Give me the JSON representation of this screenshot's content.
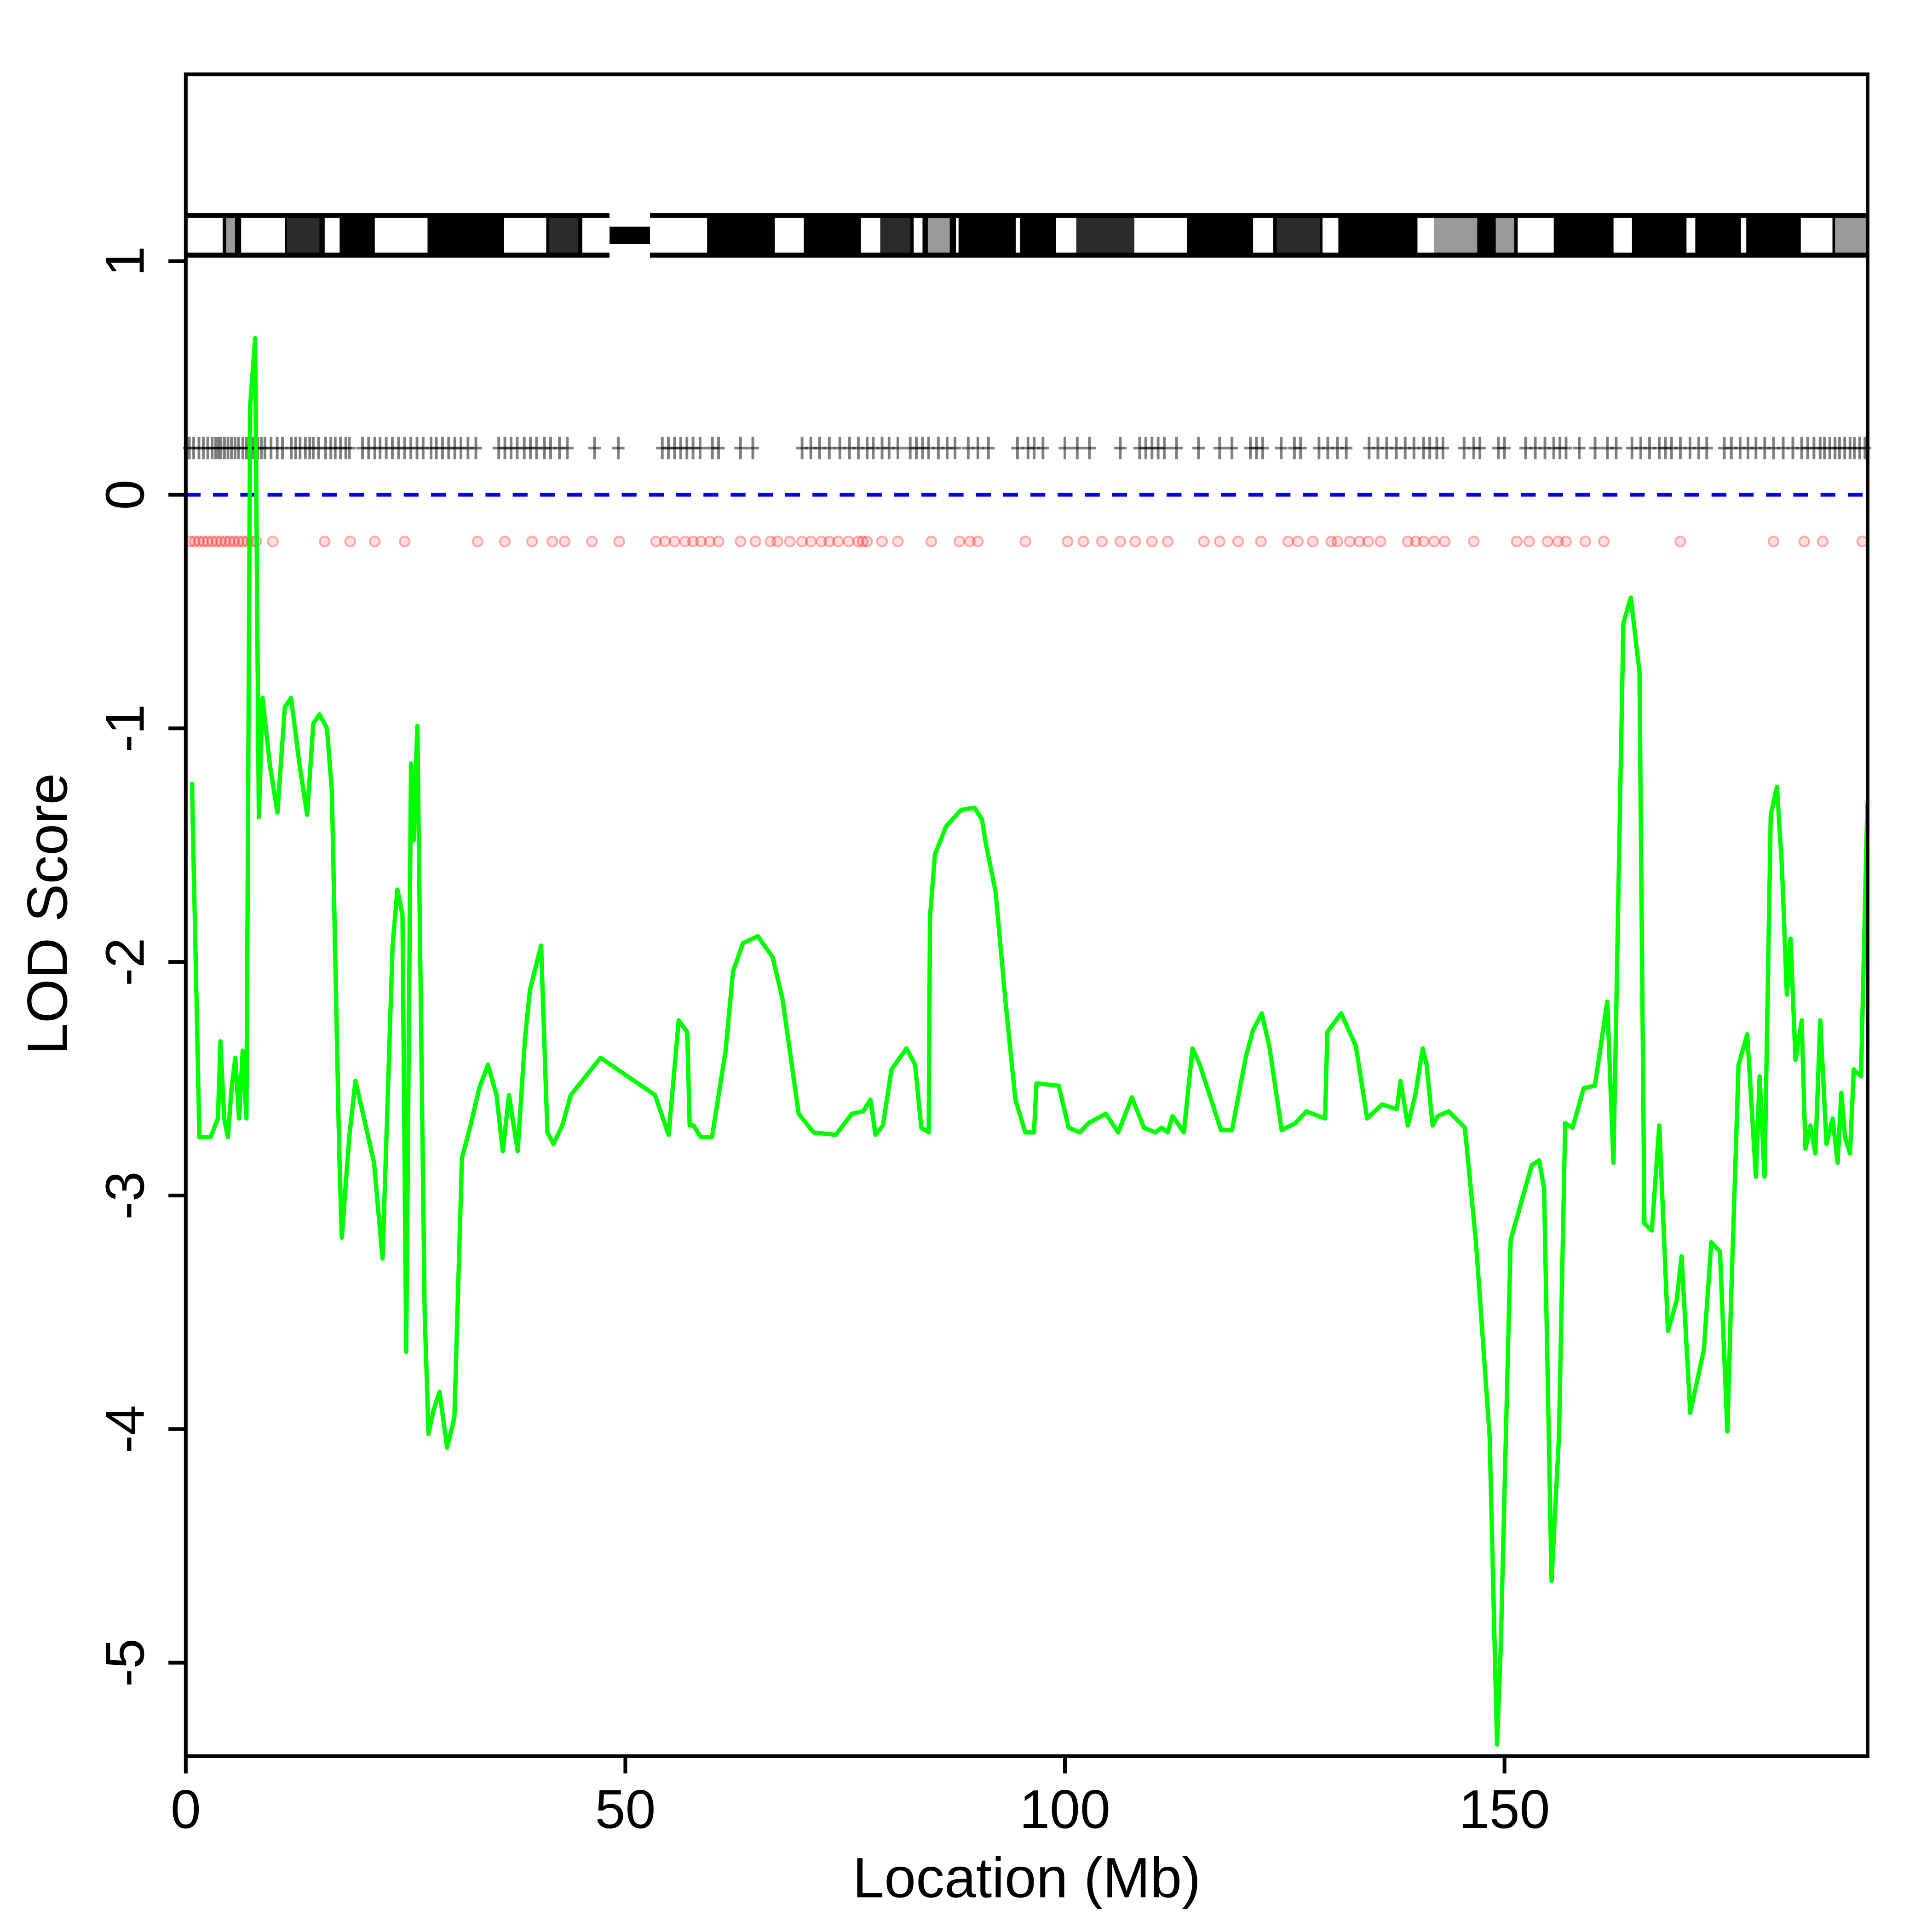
{
  "chart_data": {
    "type": "line",
    "title": "",
    "xlabel": "Location (Mb)",
    "ylabel": "LOD Score",
    "xlim": [
      0,
      191.3
    ],
    "ylim": [
      -5.4,
      1.8
    ],
    "xticks": [
      0,
      50,
      100,
      150
    ],
    "yticks": [
      -5,
      -4,
      -3,
      -2,
      -1,
      0,
      1
    ],
    "grid": false,
    "legend": "none",
    "colors": {
      "lod": "#00ff00",
      "threshold": "#0000ff",
      "markers_top": "#000000",
      "markers_bottom": "#ff0000"
    },
    "threshold": 0,
    "marker_rows": {
      "top_lod": 0.2,
      "bottom_lod": -0.2
    },
    "series": [
      {
        "name": "LOD",
        "x": [
          0.7,
          1.55,
          2.82,
          3.66,
          3.94,
          4.37,
          4.79,
          5.21,
          5.63,
          6.06,
          6.48,
          6.9,
          7.32,
          7.89,
          8.31,
          8.73,
          9.58,
          10.42,
          11.27,
          11.97,
          12.96,
          13.8,
          14.51,
          15.21,
          16.06,
          16.62,
          17.46,
          17.75,
          18.59,
          19.3,
          20.28,
          21.41,
          22.39,
          23.52,
          24.08,
          24.65,
          25.07,
          25.63,
          25.92,
          26.34,
          27.18,
          27.61,
          28.17,
          28.87,
          29.72,
          30.56,
          31.41,
          32.39,
          33.38,
          34.37,
          35.35,
          36.06,
          36.76,
          37.75,
          38.59,
          39.15,
          40.42,
          41.13,
          41.83,
          42.82,
          43.8,
          47.18,
          53.38,
          54.93,
          56.06,
          57.04,
          57.32,
          57.75,
          58.59,
          59.86,
          61.41,
          62.25,
          63.38,
          65.07,
          66.76,
          67.89,
          69.72,
          71.41,
          73.94,
          75.77,
          77.04,
          77.89,
          78.45,
          79.3,
          80.28,
          81.97,
          82.96,
          83.66,
          84.51,
          84.65,
          85.21,
          86.48,
          88.17,
          89.72,
          90.56,
          90.99,
          92.11,
          93.24,
          94.37,
          95.49,
          96.48,
          96.76,
          99.3,
          100.42,
          101.69,
          102.68,
          104.65,
          106.06,
          107.61,
          109.01,
          110.28,
          110.99,
          111.69,
          112.25,
          113.52,
          114.51,
          115.35,
          117.75,
          119.01,
          120.56,
          121.41,
          122.39,
          123.24,
          124.65,
          126.2,
          127.46,
          129.58,
          129.86,
          131.41,
          133.1,
          134.37,
          136.06,
          137.75,
          138.17,
          139.01,
          139.86,
          140.7,
          141.13,
          141.83,
          142.39,
          143.66,
          145.49,
          146.76,
          148.31,
          149.15,
          149.58,
          150.7,
          153.1,
          153.94,
          154.51,
          155.35,
          156.2,
          156.9,
          157.75,
          159.01,
          160.28,
          161.69,
          162.39,
          163.52,
          164.37,
          165.35,
          165.92,
          166.76,
          167.61,
          168.59,
          169.58,
          170.14,
          171.13,
          172.68,
          173.52,
          174.51,
          175.35,
          175.77,
          176.62,
          177.61,
          178.59,
          179.01,
          179.58,
          180.28,
          180.99,
          181.55,
          182.11,
          182.54,
          183.1,
          183.8,
          184.23,
          184.79,
          185.35,
          185.92,
          186.62,
          187.32,
          187.89,
          188.31,
          188.73,
          189.3,
          189.72,
          190.56,
          191.27
        ],
        "y": [
          -1.23,
          -2.75,
          -2.75,
          -2.67,
          -2.34,
          -2.67,
          -2.75,
          -2.54,
          -2.41,
          -2.67,
          -2.38,
          -2.67,
          0.38,
          0.67,
          -1.38,
          -0.87,
          -1.16,
          -1.36,
          -0.91,
          -0.87,
          -1.16,
          -1.37,
          -0.98,
          -0.94,
          -1.0,
          -1.27,
          -2.81,
          -3.18,
          -2.75,
          -2.51,
          -2.67,
          -2.86,
          -3.27,
          -1.93,
          -1.69,
          -1.8,
          -3.67,
          -1.15,
          -1.48,
          -0.99,
          -3.5,
          -4.02,
          -3.92,
          -3.84,
          -4.08,
          -3.95,
          -2.84,
          -2.7,
          -2.54,
          -2.44,
          -2.57,
          -2.81,
          -2.57,
          -2.81,
          -2.33,
          -2.12,
          -1.93,
          -2.73,
          -2.78,
          -2.7,
          -2.57,
          -2.41,
          -2.57,
          -2.74,
          -2.25,
          -2.3,
          -2.7,
          -2.7,
          -2.75,
          -2.75,
          -2.38,
          -2.04,
          -1.92,
          -1.89,
          -1.98,
          -2.16,
          -2.65,
          -2.73,
          -2.74,
          -2.65,
          -2.64,
          -2.59,
          -2.74,
          -2.7,
          -2.46,
          -2.37,
          -2.44,
          -2.71,
          -2.73,
          -1.81,
          -1.54,
          -1.42,
          -1.35,
          -1.34,
          -1.39,
          -1.49,
          -1.7,
          -2.17,
          -2.59,
          -2.73,
          -2.73,
          -2.52,
          -2.53,
          -2.71,
          -2.73,
          -2.69,
          -2.65,
          -2.73,
          -2.58,
          -2.71,
          -2.73,
          -2.71,
          -2.73,
          -2.66,
          -2.73,
          -2.37,
          -2.44,
          -2.72,
          -2.72,
          -2.41,
          -2.29,
          -2.22,
          -2.36,
          -2.72,
          -2.69,
          -2.64,
          -2.67,
          -2.3,
          -2.22,
          -2.36,
          -2.67,
          -2.61,
          -2.63,
          -2.51,
          -2.7,
          -2.57,
          -2.37,
          -2.44,
          -2.7,
          -2.66,
          -2.64,
          -2.71,
          -3.2,
          -4.03,
          -5.35,
          -4.93,
          -3.19,
          -2.87,
          -2.85,
          -2.97,
          -4.65,
          -4.03,
          -2.69,
          -2.71,
          -2.54,
          -2.53,
          -2.17,
          -2.86,
          -0.55,
          -0.44,
          -0.76,
          -3.12,
          -3.15,
          -2.7,
          -3.58,
          -3.45,
          -3.26,
          -3.93,
          -3.66,
          -3.2,
          -3.24,
          -4.01,
          -3.44,
          -2.44,
          -2.31,
          -2.92,
          -2.49,
          -2.92,
          -1.37,
          -1.25,
          -1.59,
          -2.14,
          -1.9,
          -2.42,
          -2.25,
          -2.8,
          -2.7,
          -2.82,
          -2.25,
          -2.78,
          -2.67,
          -2.86,
          -2.56,
          -2.75,
          -2.82,
          -2.46,
          -2.49,
          -1.32
        ]
      }
    ],
    "markers_top": [
      0.4,
      0.9,
      1.5,
      2,
      2.5,
      3,
      3.4,
      3.7,
      4,
      4.4,
      4.8,
      5.2,
      5.6,
      6,
      6.5,
      6.9,
      7.3,
      7.7,
      8.2,
      8.6,
      9,
      9.7,
      10.4,
      11,
      12,
      12.5,
      13,
      13.6,
      14.1,
      14.5,
      15.1,
      15.9,
      16.5,
      17,
      17.6,
      18.2,
      18.6,
      20.1,
      20.8,
      21.5,
      22.1,
      22.8,
      23.5,
      24.2,
      24.9,
      25.6,
      26.3,
      27,
      27.9,
      28.5,
      29.2,
      29.9,
      30.6,
      31.3,
      32.1,
      33,
      35.6,
      36.3,
      37,
      37.7,
      38.5,
      39.2,
      39.9,
      40.8,
      41.5,
      42.5,
      43.4,
      46.5,
      49.2,
      54.2,
      54.9,
      55.6,
      56.3,
      57,
      57.7,
      58.5,
      59.9,
      60.6,
      63.1,
      64.5,
      70.1,
      71.1,
      72.1,
      73.2,
      74.4,
      75.5,
      76.5,
      77.5,
      78.2,
      79.2,
      80,
      81,
      82.4,
      83.1,
      83.8,
      84.5,
      85.6,
      86.6,
      87.5,
      89,
      90.1,
      91.3,
      94.6,
      95.8,
      96.5,
      97.5,
      100,
      101.4,
      102.8,
      106.3,
      108.5,
      109.2,
      109.9,
      110.6,
      111.3,
      112.7,
      115.2,
      117.6,
      119,
      121.1,
      121.8,
      122.5,
      124.6,
      126.1,
      126.8,
      128.9,
      129.9,
      131,
      132,
      134.6,
      135.6,
      136.6,
      137.7,
      138.7,
      139.7,
      140.8,
      141.5,
      142.3,
      143,
      145.4,
      146.5,
      147.2,
      149.3,
      150,
      152.4,
      153.5,
      154.6,
      155.6,
      156.3,
      157,
      158.5,
      160.3,
      161.7,
      162.7,
      164.5,
      165.5,
      166.5,
      167.6,
      168.3,
      169,
      170,
      171.1,
      172.1,
      173,
      175,
      175.8,
      176.8,
      177.7,
      178.6,
      179.6,
      180.6,
      181.7,
      182.8,
      183.8,
      184.5,
      185.2,
      185.9,
      186.4,
      187,
      187.6,
      188.1,
      188.7,
      189.3,
      189.8,
      190.4,
      191
    ],
    "markers_bottom": [
      0.5,
      1,
      1.5,
      2,
      2.5,
      3,
      3.5,
      4,
      4.5,
      5,
      5.5,
      6,
      6.5,
      7,
      7.5,
      8,
      9.9,
      15.8,
      18.7,
      21.5,
      24.9,
      33.2,
      36.3,
      39.4,
      41.7,
      43.1,
      46.2,
      49.3,
      53.5,
      54.5,
      55.6,
      56.8,
      57.7,
      58.6,
      59.6,
      60.6,
      63.1,
      64.8,
      66.5,
      67.3,
      68.7,
      70.1,
      71.1,
      72.3,
      73.2,
      74.2,
      75.4,
      76.5,
      77,
      77.5,
      79.2,
      81,
      84.8,
      88,
      89.2,
      90.1,
      95.5,
      100.3,
      102.1,
      104.2,
      106.3,
      108,
      109.9,
      111.7,
      115.8,
      117.6,
      119.7,
      122.3,
      125.4,
      126.5,
      128.2,
      130.3,
      131,
      132.4,
      133.5,
      134.5,
      135.9,
      139,
      139.9,
      140.8,
      142,
      143.2,
      146.5,
      151.4,
      152.8,
      154.9,
      156.1,
      157,
      159.2,
      161.3,
      170,
      180.6,
      184.1,
      186.2,
      190.7
    ],
    "ideogram": {
      "centromere": [
        48.2,
        52.8
      ],
      "stain_colors": {
        "white": "#ffffff",
        "black": "#000000",
        "dark": "#2b2b2b",
        "gray": "#999999"
      },
      "bands": [
        [
          0,
          4.2,
          "white"
        ],
        [
          4.6,
          5.6,
          "gray"
        ],
        [
          6.3,
          11.3,
          "white"
        ],
        [
          11.5,
          15.2,
          "dark"
        ],
        [
          15.8,
          17.5,
          "white"
        ],
        [
          21.5,
          27.5,
          "white"
        ],
        [
          36.2,
          41,
          "white"
        ],
        [
          41.3,
          44.6,
          "dark"
        ],
        [
          45.1,
          48.2,
          "white"
        ],
        [
          52.8,
          59.3,
          "white"
        ],
        [
          67,
          70.3,
          "white"
        ],
        [
          76.8,
          79,
          "white"
        ],
        [
          79,
          82.4,
          "dark"
        ],
        [
          82.8,
          83.8,
          "white"
        ],
        [
          84.4,
          86.9,
          "gray"
        ],
        [
          87.6,
          87.9,
          "white"
        ],
        [
          94.4,
          94.9,
          "white"
        ],
        [
          99,
          101.3,
          "white"
        ],
        [
          101.3,
          107.9,
          "dark"
        ],
        [
          107.9,
          113.9,
          "white"
        ],
        [
          121.4,
          123.7,
          "white"
        ],
        [
          124.1,
          129,
          "dark"
        ],
        [
          129.3,
          131.1,
          "white"
        ],
        [
          140.1,
          142,
          "white"
        ],
        [
          142,
          146.9,
          "gray"
        ],
        [
          149,
          151.1,
          "gray"
        ],
        [
          151.5,
          155.6,
          "white"
        ],
        [
          162.4,
          164.5,
          "white"
        ],
        [
          170.7,
          171.7,
          "white"
        ],
        [
          176.9,
          177.5,
          "white"
        ],
        [
          183.7,
          187.3,
          "white"
        ],
        [
          187.6,
          191.3,
          "gray"
        ]
      ]
    }
  }
}
